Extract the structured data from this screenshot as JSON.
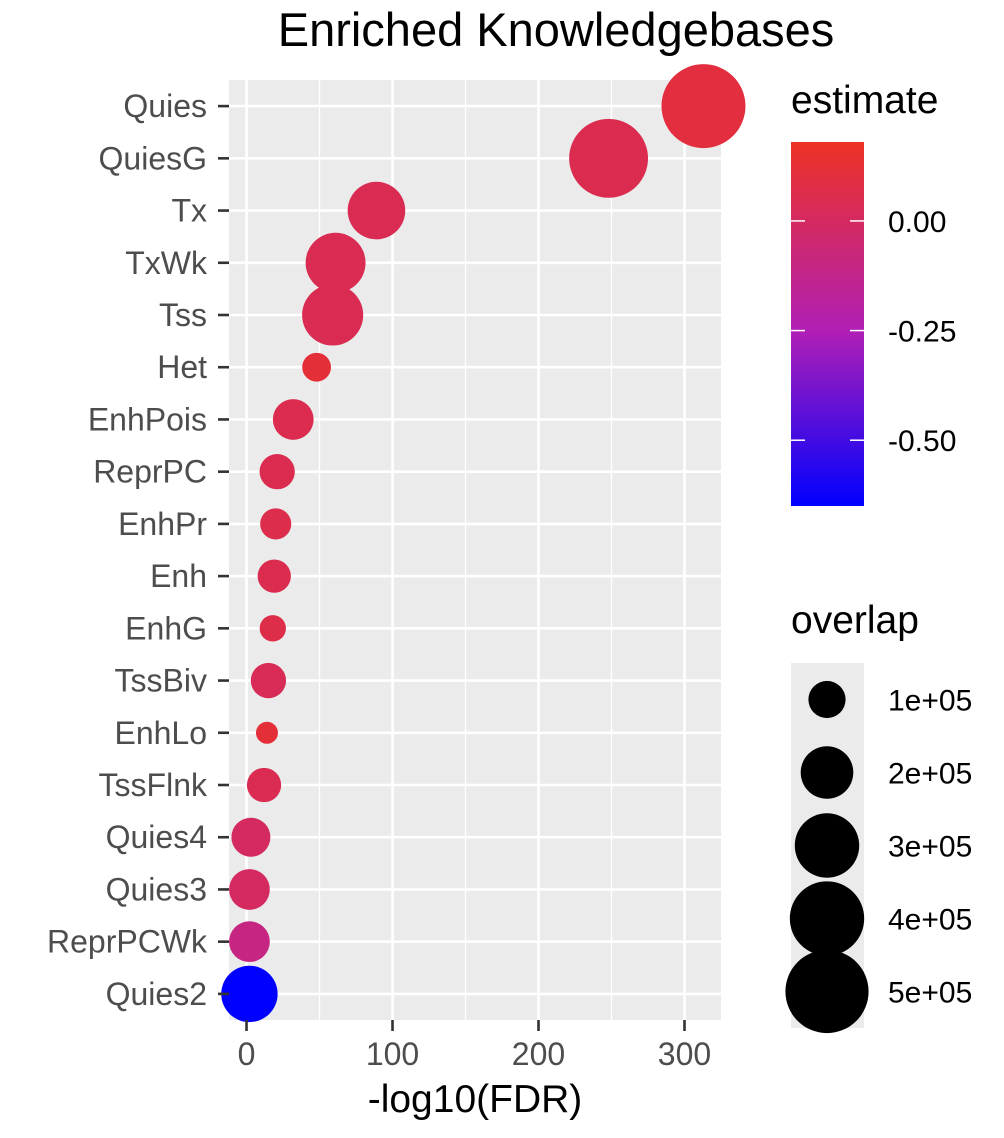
{
  "chart_data": {
    "type": "scatter",
    "title": "Enriched Knowledgebases",
    "xlabel": "-log10(FDR)",
    "ylabel": "",
    "xlim": [
      -12,
      325
    ],
    "xticks": [
      0,
      100,
      200,
      300
    ],
    "x_tick_labels": [
      "0",
      "100",
      "200",
      "300"
    ],
    "grid": true,
    "categories": [
      "Quies",
      "QuiesG",
      "Tx",
      "TxWk",
      "Tss",
      "Het",
      "EnhPois",
      "ReprPC",
      "EnhPr",
      "Enh",
      "EnhG",
      "TssBiv",
      "EnhLo",
      "TssFlnk",
      "Quies4",
      "Quies3",
      "ReprPCWk",
      "Quies2"
    ],
    "points": [
      {
        "label": "Quies",
        "x": 313,
        "estimate": 0.1,
        "overlap": 510000
      },
      {
        "label": "QuiesG",
        "x": 248,
        "estimate": 0.05,
        "overlap": 450000
      },
      {
        "label": "Tx",
        "x": 89,
        "estimate": 0.04,
        "overlap": 240000
      },
      {
        "label": "TxWk",
        "x": 61,
        "estimate": 0.04,
        "overlap": 260000
      },
      {
        "label": "Tss",
        "x": 59,
        "estimate": 0.04,
        "overlap": 270000
      },
      {
        "label": "Het",
        "x": 48,
        "estimate": 0.12,
        "overlap": 60000
      },
      {
        "label": "EnhPois",
        "x": 32,
        "estimate": 0.05,
        "overlap": 120000
      },
      {
        "label": "ReprPC",
        "x": 21,
        "estimate": 0.05,
        "overlap": 90000
      },
      {
        "label": "EnhPr",
        "x": 20,
        "estimate": 0.06,
        "overlap": 70000
      },
      {
        "label": "Enh",
        "x": 19,
        "estimate": 0.05,
        "overlap": 80000
      },
      {
        "label": "EnhG",
        "x": 18,
        "estimate": 0.07,
        "overlap": 50000
      },
      {
        "label": "TssBiv",
        "x": 15,
        "estimate": 0.03,
        "overlap": 90000
      },
      {
        "label": "EnhLo",
        "x": 14,
        "estimate": 0.12,
        "overlap": 35000
      },
      {
        "label": "TssFlnk",
        "x": 12,
        "estimate": 0.04,
        "overlap": 85000
      },
      {
        "label": "Quies4",
        "x": 3,
        "estimate": 0.0,
        "overlap": 110000
      },
      {
        "label": "Quies3",
        "x": 2,
        "estimate": 0.0,
        "overlap": 120000
      },
      {
        "label": "ReprPCWk",
        "x": 2,
        "estimate": -0.1,
        "overlap": 120000
      },
      {
        "label": "Quies2",
        "x": 2,
        "estimate": -0.65,
        "overlap": 230000
      }
    ],
    "legend_color": {
      "title": "estimate",
      "range": [
        -0.65,
        0.18
      ],
      "ticks": [
        0.0,
        -0.25,
        -0.5
      ],
      "tick_labels": [
        "0.00",
        "-0.25",
        "-0.50"
      ],
      "low_color": "#0000ff",
      "mid_color": "#b01fb5",
      "high_color": "#ee3224"
    },
    "legend_size": {
      "title": "overlap",
      "values": [
        100000,
        200000,
        300000,
        400000,
        500000
      ],
      "labels": [
        "1e+05",
        "2e+05",
        "3e+05",
        "4e+05",
        "5e+05"
      ]
    },
    "legend_placement": "right"
  }
}
